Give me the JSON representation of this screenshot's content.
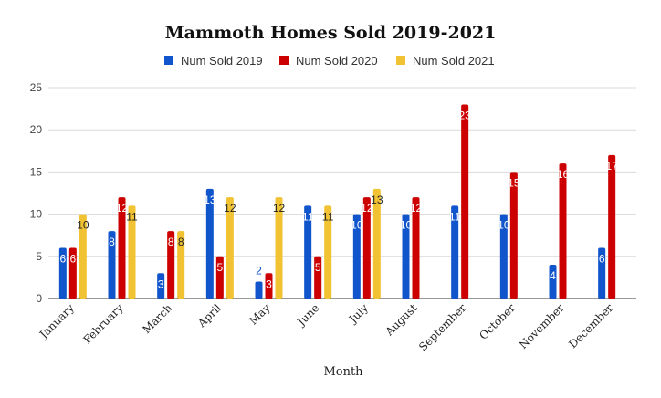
{
  "chart_data": {
    "type": "bar",
    "title": "Mammoth Homes Sold 2019-2021",
    "xlabel": "Month",
    "ylabel": "",
    "ylim": [
      0,
      25
    ],
    "yticks": [
      0,
      5,
      10,
      15,
      20,
      25
    ],
    "grid": true,
    "legend_position": "top",
    "categories": [
      "January",
      "February",
      "March",
      "April",
      "May",
      "June",
      "July",
      "August",
      "September",
      "October",
      "November",
      "December"
    ],
    "series": [
      {
        "name": "Num Sold 2019",
        "color": "#1155cc",
        "values": [
          6,
          8,
          3,
          13,
          2,
          11,
          10,
          10,
          11,
          10,
          4,
          6
        ]
      },
      {
        "name": "Num Sold 2020",
        "color": "#cc0000",
        "values": [
          6,
          12,
          8,
          5,
          3,
          5,
          12,
          12,
          23,
          15,
          16,
          17
        ]
      },
      {
        "name": "Num Sold 2021",
        "color": "#f1c232",
        "values": [
          10,
          11,
          8,
          12,
          12,
          11,
          13,
          null,
          null,
          null,
          null,
          null
        ]
      }
    ]
  }
}
